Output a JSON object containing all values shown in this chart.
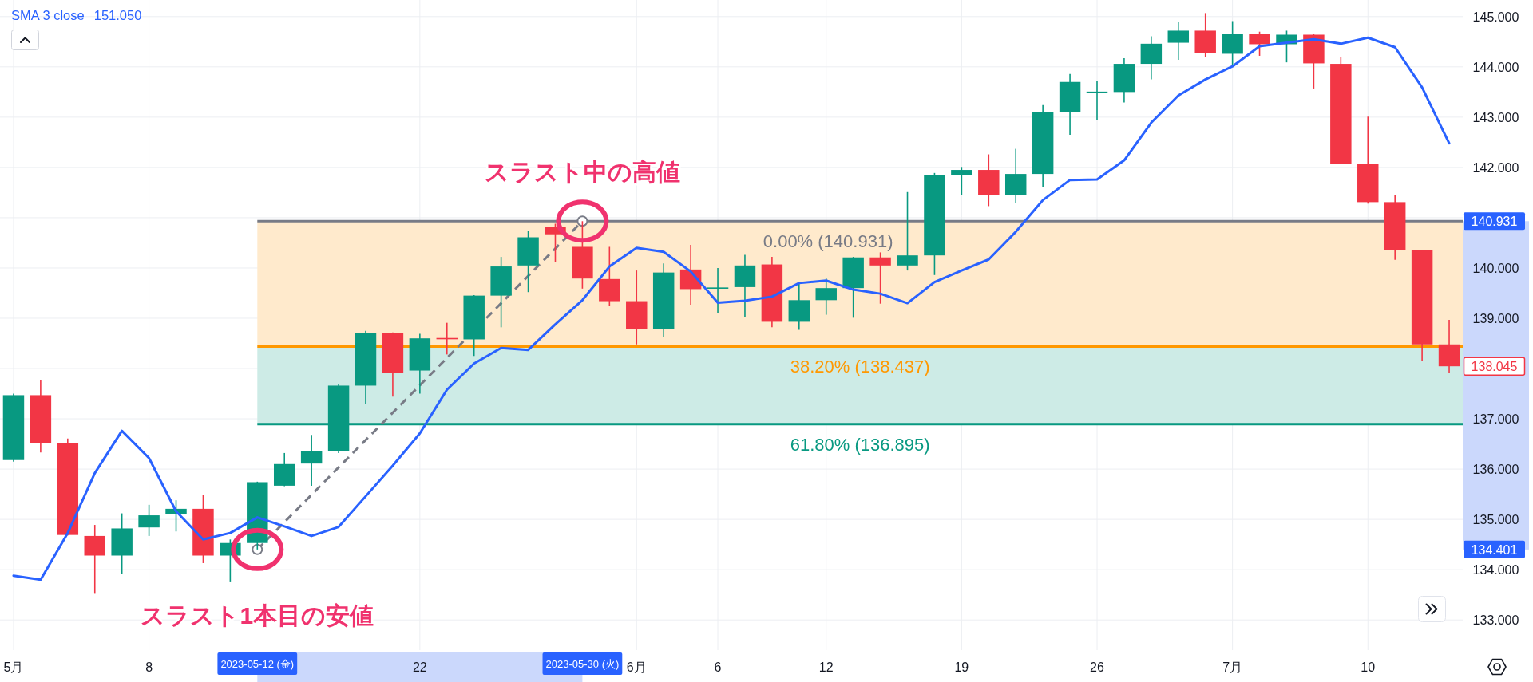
{
  "chart_data": {
    "type": "candlestick",
    "categories": [
      "5月",
      null,
      null,
      null,
      null,
      "8",
      null,
      null,
      null,
      "2023-05-12 (金)",
      null,
      null,
      null,
      null,
      null,
      "22",
      null,
      null,
      null,
      null,
      null,
      "2023-05-30 (火)",
      null,
      "6月",
      null,
      null,
      "6",
      null,
      null,
      null,
      "12",
      null,
      null,
      null,
      null,
      "19",
      null,
      null,
      null,
      null,
      "26",
      null,
      null,
      null,
      null,
      "7月",
      null,
      null,
      null,
      null,
      "10",
      null,
      null,
      null
    ],
    "ohlc": [
      [
        136.18,
        137.5,
        136.15,
        137.47
      ],
      [
        137.47,
        137.78,
        136.33,
        136.51
      ],
      [
        136.51,
        136.61,
        134.68,
        134.69
      ],
      [
        134.67,
        134.89,
        133.52,
        134.28
      ],
      [
        134.28,
        135.12,
        133.91,
        134.82
      ],
      [
        134.84,
        135.29,
        134.67,
        135.08
      ],
      [
        135.1,
        135.38,
        134.76,
        135.21
      ],
      [
        135.21,
        135.48,
        134.13,
        134.28
      ],
      [
        134.28,
        134.6,
        133.75,
        134.53
      ],
      [
        134.53,
        135.75,
        134.401,
        135.74
      ],
      [
        135.67,
        136.32,
        135.66,
        136.1
      ],
      [
        136.11,
        136.68,
        135.67,
        136.36
      ],
      [
        136.36,
        137.7,
        136.32,
        137.66
      ],
      [
        137.66,
        138.75,
        137.3,
        138.71
      ],
      [
        138.71,
        138.72,
        137.44,
        137.92
      ],
      [
        137.96,
        138.69,
        137.5,
        138.6
      ],
      [
        138.6,
        138.91,
        138.28,
        138.59
      ],
      [
        138.58,
        139.46,
        138.25,
        139.45
      ],
      [
        139.45,
        140.22,
        138.82,
        140.03
      ],
      [
        140.05,
        140.73,
        139.52,
        140.61
      ],
      [
        140.81,
        140.88,
        140.12,
        140.67
      ],
      [
        140.42,
        140.931,
        139.59,
        139.79
      ],
      [
        139.78,
        140.42,
        139.25,
        139.34
      ],
      [
        139.34,
        139.95,
        138.48,
        138.79
      ],
      [
        138.79,
        140.09,
        138.62,
        139.91
      ],
      [
        139.97,
        140.46,
        139.27,
        139.58
      ],
      [
        139.59,
        140.0,
        139.1,
        139.61
      ],
      [
        139.62,
        140.26,
        139.03,
        140.05
      ],
      [
        140.07,
        140.22,
        138.82,
        138.93
      ],
      [
        138.93,
        139.71,
        138.77,
        139.36
      ],
      [
        139.36,
        139.79,
        139.07,
        139.6
      ],
      [
        139.6,
        140.22,
        139.01,
        140.21
      ],
      [
        140.21,
        140.31,
        139.29,
        140.05
      ],
      [
        140.05,
        141.51,
        139.95,
        140.25
      ],
      [
        140.25,
        141.89,
        139.86,
        141.85
      ],
      [
        141.85,
        142.01,
        141.45,
        141.95
      ],
      [
        141.95,
        142.26,
        141.23,
        141.45
      ],
      [
        141.45,
        142.37,
        141.3,
        141.87
      ],
      [
        141.87,
        143.24,
        141.61,
        143.1
      ],
      [
        143.1,
        143.86,
        142.65,
        143.7
      ],
      [
        143.49,
        143.72,
        142.94,
        143.5
      ],
      [
        143.5,
        144.17,
        143.29,
        144.06
      ],
      [
        144.06,
        144.61,
        143.75,
        144.46
      ],
      [
        144.48,
        144.9,
        144.14,
        144.72
      ],
      [
        144.72,
        145.07,
        144.2,
        144.27
      ],
      [
        144.26,
        144.91,
        144.03,
        144.65
      ],
      [
        144.65,
        144.7,
        144.22,
        144.45
      ],
      [
        144.45,
        144.72,
        144.09,
        144.64
      ],
      [
        144.64,
        144.65,
        143.57,
        144.07
      ],
      [
        144.06,
        144.2,
        142.07,
        142.07
      ],
      [
        142.07,
        143.01,
        141.28,
        141.31
      ],
      [
        141.31,
        141.46,
        140.16,
        140.35
      ],
      [
        140.35,
        140.36,
        138.15,
        138.48
      ],
      [
        138.48,
        138.97,
        137.92,
        138.045
      ]
    ],
    "colors": [
      "#089981",
      "#f23645",
      "#f23645",
      "#f23645",
      "#089981",
      "#089981",
      "#089981",
      "#f23645",
      "#089981",
      "#089981",
      "#089981",
      "#089981",
      "#089981",
      "#089981",
      "#f23645",
      "#089981",
      "#f23645",
      "#089981",
      "#089981",
      "#089981",
      "#f23645",
      "#f23645",
      "#f23645",
      "#f23645",
      "#089981",
      "#f23645",
      "#089981",
      "#089981",
      "#f23645",
      "#089981",
      "#089981",
      "#089981",
      "#f23645",
      "#089981",
      "#089981",
      "#089981",
      "#f23645",
      "#089981",
      "#089981",
      "#089981",
      "#089981",
      "#089981",
      "#089981",
      "#089981",
      "#f23645",
      "#089981",
      "#f23645",
      "#089981",
      "#f23645",
      "#f23645",
      "#f23645",
      "#f23645",
      "#f23645",
      "#f23645"
    ],
    "series": [
      {
        "type": "line",
        "name": "SMA 3 close",
        "color": "#2962ff",
        "values": [
          133.88,
          133.8,
          134.73,
          135.92,
          136.76,
          136.22,
          135.16,
          134.6,
          134.73,
          135.04,
          134.86,
          134.67,
          134.85,
          135.46,
          136.07,
          136.71,
          137.58,
          138.1,
          138.41,
          138.37,
          138.88,
          139.36,
          140.03,
          140.4,
          140.32,
          139.93,
          139.31,
          139.35,
          139.43,
          139.7,
          139.75,
          139.57,
          139.49,
          139.3,
          139.72,
          139.95,
          140.17,
          140.72,
          141.35,
          141.75,
          141.76,
          142.14,
          142.89,
          143.43,
          143.75,
          144.01,
          144.41,
          144.48,
          144.55,
          144.46,
          144.58,
          144.39,
          143.59,
          142.48
        ]
      },
      {
        "type": "line",
        "x": [
          "2023-05-12 (金)",
          "2023-05-30 (火)"
        ],
        "values": [
          134.401,
          140.931
        ],
        "color": "#787b86",
        "line_style": "dashed",
        "marker": "circle"
      }
    ],
    "ylim": [
      132.4,
      145.33
    ],
    "yticks": [
      {
        "value": 133,
        "label": "133.000"
      },
      {
        "value": 134,
        "label": "134.000"
      },
      {
        "value": 134.401,
        "label": "134.401"
      },
      {
        "value": 135,
        "label": "135.000"
      },
      {
        "value": 136,
        "label": "136.000"
      },
      {
        "value": 137,
        "label": "137.000"
      },
      {
        "value": 138,
        "label": null
      },
      {
        "value": 138.045,
        "label": "138.045"
      },
      {
        "value": 139,
        "label": "139.000"
      },
      {
        "value": 140,
        "label": "140.000"
      },
      {
        "value": 140.931,
        "label": "140.931"
      },
      {
        "value": 141,
        "label": null
      },
      {
        "value": 142,
        "label": "142.000"
      },
      {
        "value": 143,
        "label": "143.000"
      },
      {
        "value": 144,
        "label": "144.000"
      },
      {
        "value": 145,
        "label": "145.000"
      }
    ],
    "grid": true,
    "legend": "top left",
    "ref_lines": [
      {
        "axis": "y",
        "value": 140.931,
        "label": "0.00% (140.931)",
        "color": "#787b86"
      },
      {
        "axis": "y",
        "value": 138.437,
        "label": "38.20% (138.437)",
        "color": "#ff9800"
      },
      {
        "axis": "y",
        "value": 136.895,
        "label": "61.80% (136.895)",
        "color": "#089981"
      }
    ],
    "bands": [
      {
        "axis": "y",
        "from": 138.437,
        "to": 140.931,
        "color": "#ffeacc"
      },
      {
        "axis": "y",
        "from": 136.895,
        "to": 138.437,
        "color": "#cdebe6"
      }
    ],
    "annotations": [
      "151.050",
      {
        "text": "スラスト1本目の安値",
        "x": "2023-05-12 (金)",
        "y": 134.401
      },
      {
        "text": "スラスト中の高値",
        "x": "2023-05-30 (火)",
        "y": 140.931
      }
    ]
  }
}
